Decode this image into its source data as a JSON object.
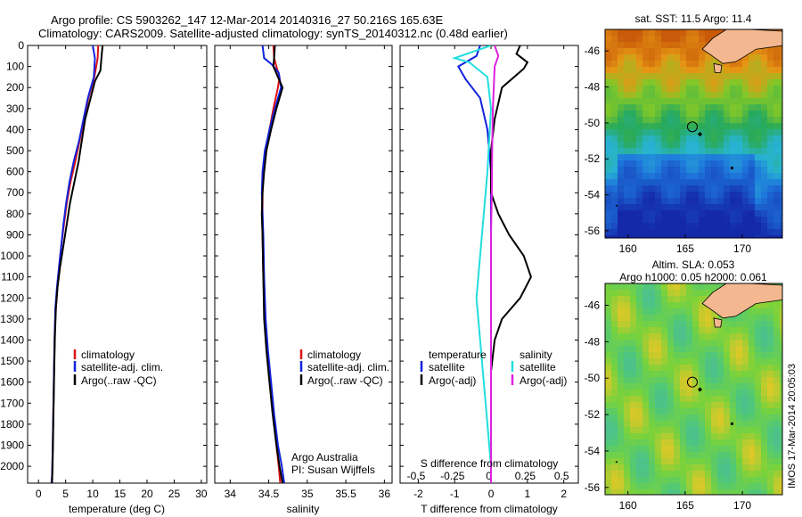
{
  "figure": {
    "title_line1": "Argo profile: CS 5903262_147 12-Mar-2014 20140316_27 50.216S 165.63E",
    "title_line2": "Climatology: CARS2009. Satellite-adjusted climatology: synTS_20140312.nc (0.48d earlier)",
    "credit": "IMOS 17-Mar-2014 20:05:03",
    "colors": {
      "climatology": "#dd1111",
      "satellite": "#1122dd",
      "argo": "#000000",
      "cyan": "#22dddd",
      "magenta": "#dd22dd",
      "land": "#f4b890"
    }
  },
  "chart_data": [
    {
      "type": "line",
      "xlabel": "temperature (deg C)",
      "ylim": [
        2080,
        0
      ],
      "xlim": [
        -2,
        31
      ],
      "xticks": [
        "0",
        "5",
        "10",
        "15",
        "20",
        "25",
        "30"
      ],
      "yticks": [
        "0",
        "100",
        "200",
        "300",
        "400",
        "500",
        "600",
        "700",
        "800",
        "900",
        "1000",
        "1100",
        "1200",
        "1300",
        "1400",
        "1500",
        "1600",
        "1700",
        "1800",
        "1900",
        "2000"
      ],
      "legend": [
        "climatology",
        "satellite-adj. clim.",
        "Argo(..raw -QC)"
      ],
      "series": [
        {
          "name": "climatology",
          "color": "#dd1111",
          "x": [
            11.0,
            10.9,
            10.3,
            9.2,
            8.4,
            7.6,
            6.8,
            5.9,
            5.2,
            4.7,
            4.2,
            3.8,
            3.5,
            3.2,
            3.0,
            2.9,
            2.8,
            2.7,
            2.6,
            2.5,
            2.4
          ],
          "y": [
            0,
            60,
            150,
            250,
            350,
            450,
            550,
            650,
            750,
            850,
            950,
            1050,
            1150,
            1250,
            1350,
            1500,
            1650,
            1800,
            1950,
            2050,
            2080
          ]
        },
        {
          "name": "satellite-adj. clim.",
          "color": "#1122dd",
          "x": [
            10.0,
            10.4,
            10.2,
            9.1,
            8.3,
            7.5,
            6.5,
            5.7,
            5.1,
            4.6,
            4.2,
            3.8,
            3.4,
            3.1,
            3.0,
            2.9,
            2.8,
            2.7,
            2.6,
            2.5,
            2.4
          ],
          "y": [
            0,
            60,
            150,
            250,
            350,
            450,
            550,
            650,
            750,
            850,
            950,
            1050,
            1150,
            1250,
            1350,
            1500,
            1650,
            1800,
            1950,
            2050,
            2080
          ]
        },
        {
          "name": "Argo(..raw -QC)",
          "color": "#000000",
          "x": [
            11.8,
            11.6,
            11.4,
            10.4,
            9.6,
            8.6,
            8.0,
            7.4,
            6.6,
            5.8,
            5.2,
            4.6,
            4.0,
            3.5,
            3.2,
            3.0,
            2.9,
            2.8,
            2.7,
            2.6,
            2.5
          ],
          "y": [
            0,
            60,
            120,
            170,
            250,
            350,
            450,
            550,
            650,
            750,
            850,
            950,
            1050,
            1150,
            1250,
            1400,
            1550,
            1700,
            1850,
            2000,
            2080
          ]
        }
      ]
    },
    {
      "type": "line",
      "xlabel": "salinity",
      "ylim": [
        2080,
        0
      ],
      "xlim": [
        33.8,
        36.1
      ],
      "xticks": [
        "34",
        "34.5",
        "35",
        "35.5",
        "36"
      ],
      "legend": [
        "climatology",
        "satellite-adj. clim.",
        "Argo(..raw -QC)"
      ],
      "annotation_line1": "Argo Australia",
      "annotation_line2": "PI: Susan Wijffels",
      "series": [
        {
          "name": "climatology",
          "color": "#dd1111",
          "x": [
            34.56,
            34.57,
            34.6,
            34.64,
            34.62,
            34.56,
            34.51,
            34.46,
            34.43,
            34.42,
            34.42,
            34.42,
            34.43,
            34.45,
            34.48,
            34.52,
            34.56,
            34.6,
            34.63,
            34.65
          ],
          "y": [
            0,
            60,
            100,
            150,
            200,
            300,
            400,
            500,
            600,
            700,
            800,
            900,
            1100,
            1300,
            1450,
            1600,
            1750,
            1900,
            2000,
            2080
          ]
        },
        {
          "name": "satellite-adj. clim.",
          "color": "#1122dd",
          "x": [
            34.42,
            34.44,
            34.54,
            34.63,
            34.66,
            34.58,
            34.51,
            34.45,
            34.42,
            34.41,
            34.42,
            34.43,
            34.44,
            34.46,
            34.49,
            34.53,
            34.57,
            34.62,
            34.67,
            34.7
          ],
          "y": [
            0,
            60,
            90,
            130,
            200,
            300,
            400,
            500,
            600,
            700,
            800,
            900,
            1100,
            1300,
            1450,
            1600,
            1750,
            1900,
            2000,
            2080
          ]
        },
        {
          "name": "Argo(..raw -QC)",
          "color": "#000000",
          "x": [
            34.58,
            34.57,
            34.56,
            34.62,
            34.68,
            34.6,
            34.53,
            34.47,
            34.44,
            34.42,
            34.41,
            34.42,
            34.43,
            34.44,
            34.47,
            34.51,
            34.55,
            34.6,
            34.64,
            34.68
          ],
          "y": [
            0,
            60,
            100,
            150,
            200,
            300,
            400,
            500,
            600,
            700,
            800,
            900,
            1100,
            1300,
            1450,
            1600,
            1750,
            1900,
            2000,
            2080
          ]
        }
      ]
    },
    {
      "type": "line",
      "xlabel": "T difference from climatology",
      "xlabel_top": "S difference from climatology",
      "ylim": [
        2080,
        0
      ],
      "xlim": [
        -2.5,
        2.4
      ],
      "xticks": [
        "-2",
        "-1",
        "0",
        "1",
        "2"
      ],
      "xticks_top": [
        "-0.5",
        "-0.25",
        "0",
        "0.25",
        "0.5"
      ],
      "legend_temperature": "temperature",
      "legend_salinity": "salinity",
      "legend_items": [
        "satellite",
        "Argo(-adj)",
        "satellite",
        "Argo(-adj)"
      ],
      "series": [
        {
          "name": "satellite",
          "color": "#1122dd",
          "x": [
            -0.3,
            -0.4,
            -0.9,
            -0.7,
            -0.3,
            -0.1,
            0.0,
            0.0,
            0.0,
            0.0,
            0.0,
            0.0,
            0.0,
            0.0,
            0.0
          ],
          "y": [
            0,
            50,
            100,
            160,
            250,
            400,
            600,
            800,
            1000,
            1200,
            1400,
            1600,
            1800,
            2000,
            2080
          ]
        },
        {
          "name": "Argo(-adj)",
          "color": "#000000",
          "x": [
            0.8,
            0.7,
            1.0,
            0.9,
            0.3,
            0.1,
            0.0,
            0.0,
            0.2,
            0.5,
            0.9,
            1.1,
            0.8,
            0.3,
            0.1,
            0.0,
            0.0,
            0.0
          ],
          "y": [
            0,
            40,
            80,
            110,
            200,
            350,
            500,
            700,
            800,
            900,
            1000,
            1100,
            1200,
            1300,
            1400,
            1550,
            1800,
            2080
          ]
        },
        {
          "name": "satellite",
          "color": "#22dddd",
          "x": [
            0.0,
            -1.0,
            -0.6,
            -0.1,
            0.0,
            -0.1,
            -0.2,
            -0.3,
            -0.4,
            -0.3,
            -0.2,
            -0.1,
            0.0,
            0.0
          ],
          "y": [
            0,
            60,
            80,
            150,
            300,
            600,
            800,
            1000,
            1200,
            1400,
            1600,
            1800,
            2000,
            2080
          ]
        },
        {
          "name": "Argo(-adj)",
          "color": "#dd22dd",
          "x": [
            0.1,
            0.2,
            0.1,
            0.05,
            0.03,
            0.02,
            0.0,
            0.0,
            0.0,
            0.0
          ],
          "y": [
            0,
            50,
            100,
            300,
            500,
            700,
            900,
            1200,
            1600,
            2080
          ]
        }
      ]
    },
    {
      "type": "heatmap",
      "title": "sat. SST: 11.5 Argo: 11.4",
      "xticks": [
        "160",
        "165",
        "170"
      ],
      "yticks": [
        "-46",
        "-48",
        "-50",
        "-52",
        "-54",
        "-56"
      ],
      "xlim": [
        158,
        173.5
      ],
      "ylim": [
        -56.4,
        -44.8
      ],
      "argo_position": {
        "lon": 165.63,
        "lat": -50.216
      }
    },
    {
      "type": "heatmap",
      "title_line1": "Altim. SLA: 0.053",
      "title_line2": "Argo h1000: 0.05 h2000: 0.061",
      "xticks": [
        "160",
        "165",
        "170"
      ],
      "yticks": [
        "-46",
        "-48",
        "-50",
        "-52",
        "-54",
        "-56"
      ],
      "xlim": [
        158,
        173.5
      ],
      "ylim": [
        -56.4,
        -44.8
      ],
      "argo_position": {
        "lon": 165.63,
        "lat": -50.216
      }
    }
  ]
}
